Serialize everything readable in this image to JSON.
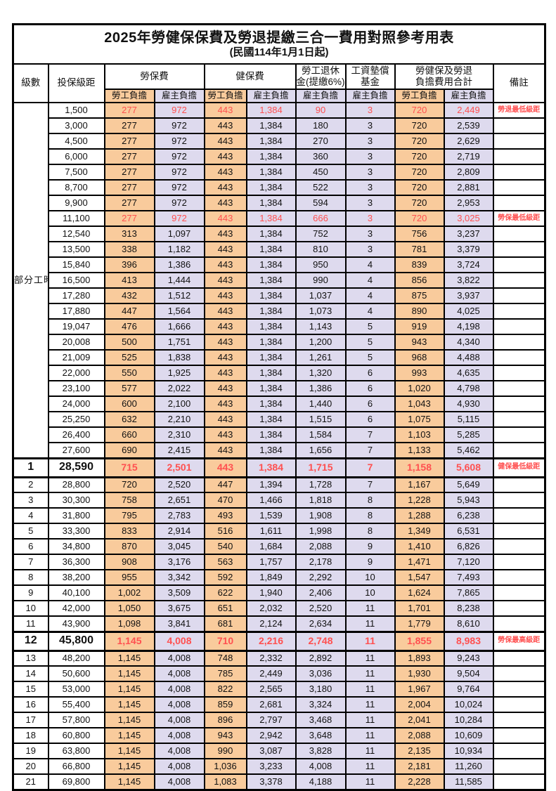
{
  "title": "2025年勞健保保費及勞退提繳三合一費用對照參考用表",
  "subtitle": "(民國114年1月1日起)",
  "header": {
    "level": "級數",
    "bracket": "投保級距",
    "labor_ins": "勞保費",
    "health_ins": "健保費",
    "pension_line1": "勞工退休",
    "pension_line2": "金(提繳6%)",
    "wage_fund_line1": "工資墊償",
    "wage_fund_line2": "基金",
    "total_line1": "勞健保及勞退",
    "total_line2": "負擔費用合計",
    "remark": "備註",
    "employee": "勞工負擔",
    "employer": "雇主負擔"
  },
  "part_time_label": "部分工時",
  "colors": {
    "employee_bg": "#F9CB9C",
    "employer_bg": "#DEDAEE",
    "highlight_red": "#FF5050"
  },
  "rows": [
    {
      "level": "",
      "bracket": "1,500",
      "v": [
        "277",
        "972",
        "443",
        "1,384",
        "90",
        "3",
        "720",
        "2,449"
      ],
      "remark": "勞退最低級距",
      "style": "red"
    },
    {
      "level": "",
      "bracket": "3,000",
      "v": [
        "277",
        "972",
        "443",
        "1,384",
        "180",
        "3",
        "720",
        "2,539"
      ],
      "remark": "",
      "style": ""
    },
    {
      "level": "",
      "bracket": "4,500",
      "v": [
        "277",
        "972",
        "443",
        "1,384",
        "270",
        "3",
        "720",
        "2,629"
      ],
      "remark": "",
      "style": ""
    },
    {
      "level": "",
      "bracket": "6,000",
      "v": [
        "277",
        "972",
        "443",
        "1,384",
        "360",
        "3",
        "720",
        "2,719"
      ],
      "remark": "",
      "style": ""
    },
    {
      "level": "",
      "bracket": "7,500",
      "v": [
        "277",
        "972",
        "443",
        "1,384",
        "450",
        "3",
        "720",
        "2,809"
      ],
      "remark": "",
      "style": ""
    },
    {
      "level": "",
      "bracket": "8,700",
      "v": [
        "277",
        "972",
        "443",
        "1,384",
        "522",
        "3",
        "720",
        "2,881"
      ],
      "remark": "",
      "style": ""
    },
    {
      "level": "",
      "bracket": "9,900",
      "v": [
        "277",
        "972",
        "443",
        "1,384",
        "594",
        "3",
        "720",
        "2,953"
      ],
      "remark": "",
      "style": ""
    },
    {
      "level": "",
      "bracket": "11,100",
      "v": [
        "277",
        "972",
        "443",
        "1,384",
        "666",
        "3",
        "720",
        "3,025"
      ],
      "remark": "勞保最低級距",
      "style": "red"
    },
    {
      "level": "",
      "bracket": "12,540",
      "v": [
        "313",
        "1,097",
        "443",
        "1,384",
        "752",
        "3",
        "756",
        "3,237"
      ],
      "remark": "",
      "style": ""
    },
    {
      "level": "",
      "bracket": "13,500",
      "v": [
        "338",
        "1,182",
        "443",
        "1,384",
        "810",
        "3",
        "781",
        "3,379"
      ],
      "remark": "",
      "style": ""
    },
    {
      "level": "",
      "bracket": "15,840",
      "v": [
        "396",
        "1,386",
        "443",
        "1,384",
        "950",
        "4",
        "839",
        "3,724"
      ],
      "remark": "",
      "style": ""
    },
    {
      "level": "",
      "bracket": "16,500",
      "v": [
        "413",
        "1,444",
        "443",
        "1,384",
        "990",
        "4",
        "856",
        "3,822"
      ],
      "remark": "",
      "style": ""
    },
    {
      "level": "",
      "bracket": "17,280",
      "v": [
        "432",
        "1,512",
        "443",
        "1,384",
        "1,037",
        "4",
        "875",
        "3,937"
      ],
      "remark": "",
      "style": ""
    },
    {
      "level": "",
      "bracket": "17,880",
      "v": [
        "447",
        "1,564",
        "443",
        "1,384",
        "1,073",
        "4",
        "890",
        "4,025"
      ],
      "remark": "",
      "style": ""
    },
    {
      "level": "",
      "bracket": "19,047",
      "v": [
        "476",
        "1,666",
        "443",
        "1,384",
        "1,143",
        "5",
        "919",
        "4,198"
      ],
      "remark": "",
      "style": ""
    },
    {
      "level": "",
      "bracket": "20,008",
      "v": [
        "500",
        "1,751",
        "443",
        "1,384",
        "1,200",
        "5",
        "943",
        "4,340"
      ],
      "remark": "",
      "style": ""
    },
    {
      "level": "",
      "bracket": "21,009",
      "v": [
        "525",
        "1,838",
        "443",
        "1,384",
        "1,261",
        "5",
        "968",
        "4,488"
      ],
      "remark": "",
      "style": ""
    },
    {
      "level": "",
      "bracket": "22,000",
      "v": [
        "550",
        "1,925",
        "443",
        "1,384",
        "1,320",
        "6",
        "993",
        "4,635"
      ],
      "remark": "",
      "style": ""
    },
    {
      "level": "",
      "bracket": "23,100",
      "v": [
        "577",
        "2,022",
        "443",
        "1,384",
        "1,386",
        "6",
        "1,020",
        "4,798"
      ],
      "remark": "",
      "style": ""
    },
    {
      "level": "",
      "bracket": "24,000",
      "v": [
        "600",
        "2,100",
        "443",
        "1,384",
        "1,440",
        "6",
        "1,043",
        "4,930"
      ],
      "remark": "",
      "style": ""
    },
    {
      "level": "",
      "bracket": "25,250",
      "v": [
        "632",
        "2,210",
        "443",
        "1,384",
        "1,515",
        "6",
        "1,075",
        "5,115"
      ],
      "remark": "",
      "style": ""
    },
    {
      "level": "",
      "bracket": "26,400",
      "v": [
        "660",
        "2,310",
        "443",
        "1,384",
        "1,584",
        "7",
        "1,103",
        "5,285"
      ],
      "remark": "",
      "style": ""
    },
    {
      "level": "",
      "bracket": "27,600",
      "v": [
        "690",
        "2,415",
        "443",
        "1,384",
        "1,656",
        "7",
        "1,133",
        "5,462"
      ],
      "remark": "",
      "style": ""
    },
    {
      "level": "1",
      "bracket": "28,590",
      "v": [
        "715",
        "2,501",
        "443",
        "1,384",
        "1,715",
        "7",
        "1,158",
        "5,608"
      ],
      "remark": "健保最低級距",
      "style": "redbold"
    },
    {
      "level": "2",
      "bracket": "28,800",
      "v": [
        "720",
        "2,520",
        "447",
        "1,394",
        "1,728",
        "7",
        "1,167",
        "5,649"
      ],
      "remark": "",
      "style": ""
    },
    {
      "level": "3",
      "bracket": "30,300",
      "v": [
        "758",
        "2,651",
        "470",
        "1,466",
        "1,818",
        "8",
        "1,228",
        "5,943"
      ],
      "remark": "",
      "style": ""
    },
    {
      "level": "4",
      "bracket": "31,800",
      "v": [
        "795",
        "2,783",
        "493",
        "1,539",
        "1,908",
        "8",
        "1,288",
        "6,238"
      ],
      "remark": "",
      "style": ""
    },
    {
      "level": "5",
      "bracket": "33,300",
      "v": [
        "833",
        "2,914",
        "516",
        "1,611",
        "1,998",
        "8",
        "1,349",
        "6,531"
      ],
      "remark": "",
      "style": ""
    },
    {
      "level": "6",
      "bracket": "34,800",
      "v": [
        "870",
        "3,045",
        "540",
        "1,684",
        "2,088",
        "9",
        "1,410",
        "6,826"
      ],
      "remark": "",
      "style": ""
    },
    {
      "level": "7",
      "bracket": "36,300",
      "v": [
        "908",
        "3,176",
        "563",
        "1,757",
        "2,178",
        "9",
        "1,471",
        "7,120"
      ],
      "remark": "",
      "style": ""
    },
    {
      "level": "8",
      "bracket": "38,200",
      "v": [
        "955",
        "3,342",
        "592",
        "1,849",
        "2,292",
        "10",
        "1,547",
        "7,493"
      ],
      "remark": "",
      "style": ""
    },
    {
      "level": "9",
      "bracket": "40,100",
      "v": [
        "1,002",
        "3,509",
        "622",
        "1,940",
        "2,406",
        "10",
        "1,624",
        "7,865"
      ],
      "remark": "",
      "style": ""
    },
    {
      "level": "10",
      "bracket": "42,000",
      "v": [
        "1,050",
        "3,675",
        "651",
        "2,032",
        "2,520",
        "11",
        "1,701",
        "8,238"
      ],
      "remark": "",
      "style": ""
    },
    {
      "level": "11",
      "bracket": "43,900",
      "v": [
        "1,098",
        "3,841",
        "681",
        "2,124",
        "2,634",
        "11",
        "1,779",
        "8,610"
      ],
      "remark": "",
      "style": ""
    },
    {
      "level": "12",
      "bracket": "45,800",
      "v": [
        "1,145",
        "4,008",
        "710",
        "2,216",
        "2,748",
        "11",
        "1,855",
        "8,983"
      ],
      "remark": "勞保最高級距",
      "style": "redbold"
    },
    {
      "level": "13",
      "bracket": "48,200",
      "v": [
        "1,145",
        "4,008",
        "748",
        "2,332",
        "2,892",
        "11",
        "1,893",
        "9,243"
      ],
      "remark": "",
      "style": ""
    },
    {
      "level": "14",
      "bracket": "50,600",
      "v": [
        "1,145",
        "4,008",
        "785",
        "2,449",
        "3,036",
        "11",
        "1,930",
        "9,504"
      ],
      "remark": "",
      "style": ""
    },
    {
      "level": "15",
      "bracket": "53,000",
      "v": [
        "1,145",
        "4,008",
        "822",
        "2,565",
        "3,180",
        "11",
        "1,967",
        "9,764"
      ],
      "remark": "",
      "style": ""
    },
    {
      "level": "16",
      "bracket": "55,400",
      "v": [
        "1,145",
        "4,008",
        "859",
        "2,681",
        "3,324",
        "11",
        "2,004",
        "10,024"
      ],
      "remark": "",
      "style": ""
    },
    {
      "level": "17",
      "bracket": "57,800",
      "v": [
        "1,145",
        "4,008",
        "896",
        "2,797",
        "3,468",
        "11",
        "2,041",
        "10,284"
      ],
      "remark": "",
      "style": ""
    },
    {
      "level": "18",
      "bracket": "60,800",
      "v": [
        "1,145",
        "4,008",
        "943",
        "2,942",
        "3,648",
        "11",
        "2,088",
        "10,609"
      ],
      "remark": "",
      "style": ""
    },
    {
      "level": "19",
      "bracket": "63,800",
      "v": [
        "1,145",
        "4,008",
        "990",
        "3,087",
        "3,828",
        "11",
        "2,135",
        "10,934"
      ],
      "remark": "",
      "style": ""
    },
    {
      "level": "20",
      "bracket": "66,800",
      "v": [
        "1,145",
        "4,008",
        "1,036",
        "3,233",
        "4,008",
        "11",
        "2,181",
        "11,260"
      ],
      "remark": "",
      "style": ""
    },
    {
      "level": "21",
      "bracket": "69,800",
      "v": [
        "1,145",
        "4,008",
        "1,083",
        "3,378",
        "4,188",
        "11",
        "2,228",
        "11,585"
      ],
      "remark": "",
      "style": ""
    }
  ]
}
